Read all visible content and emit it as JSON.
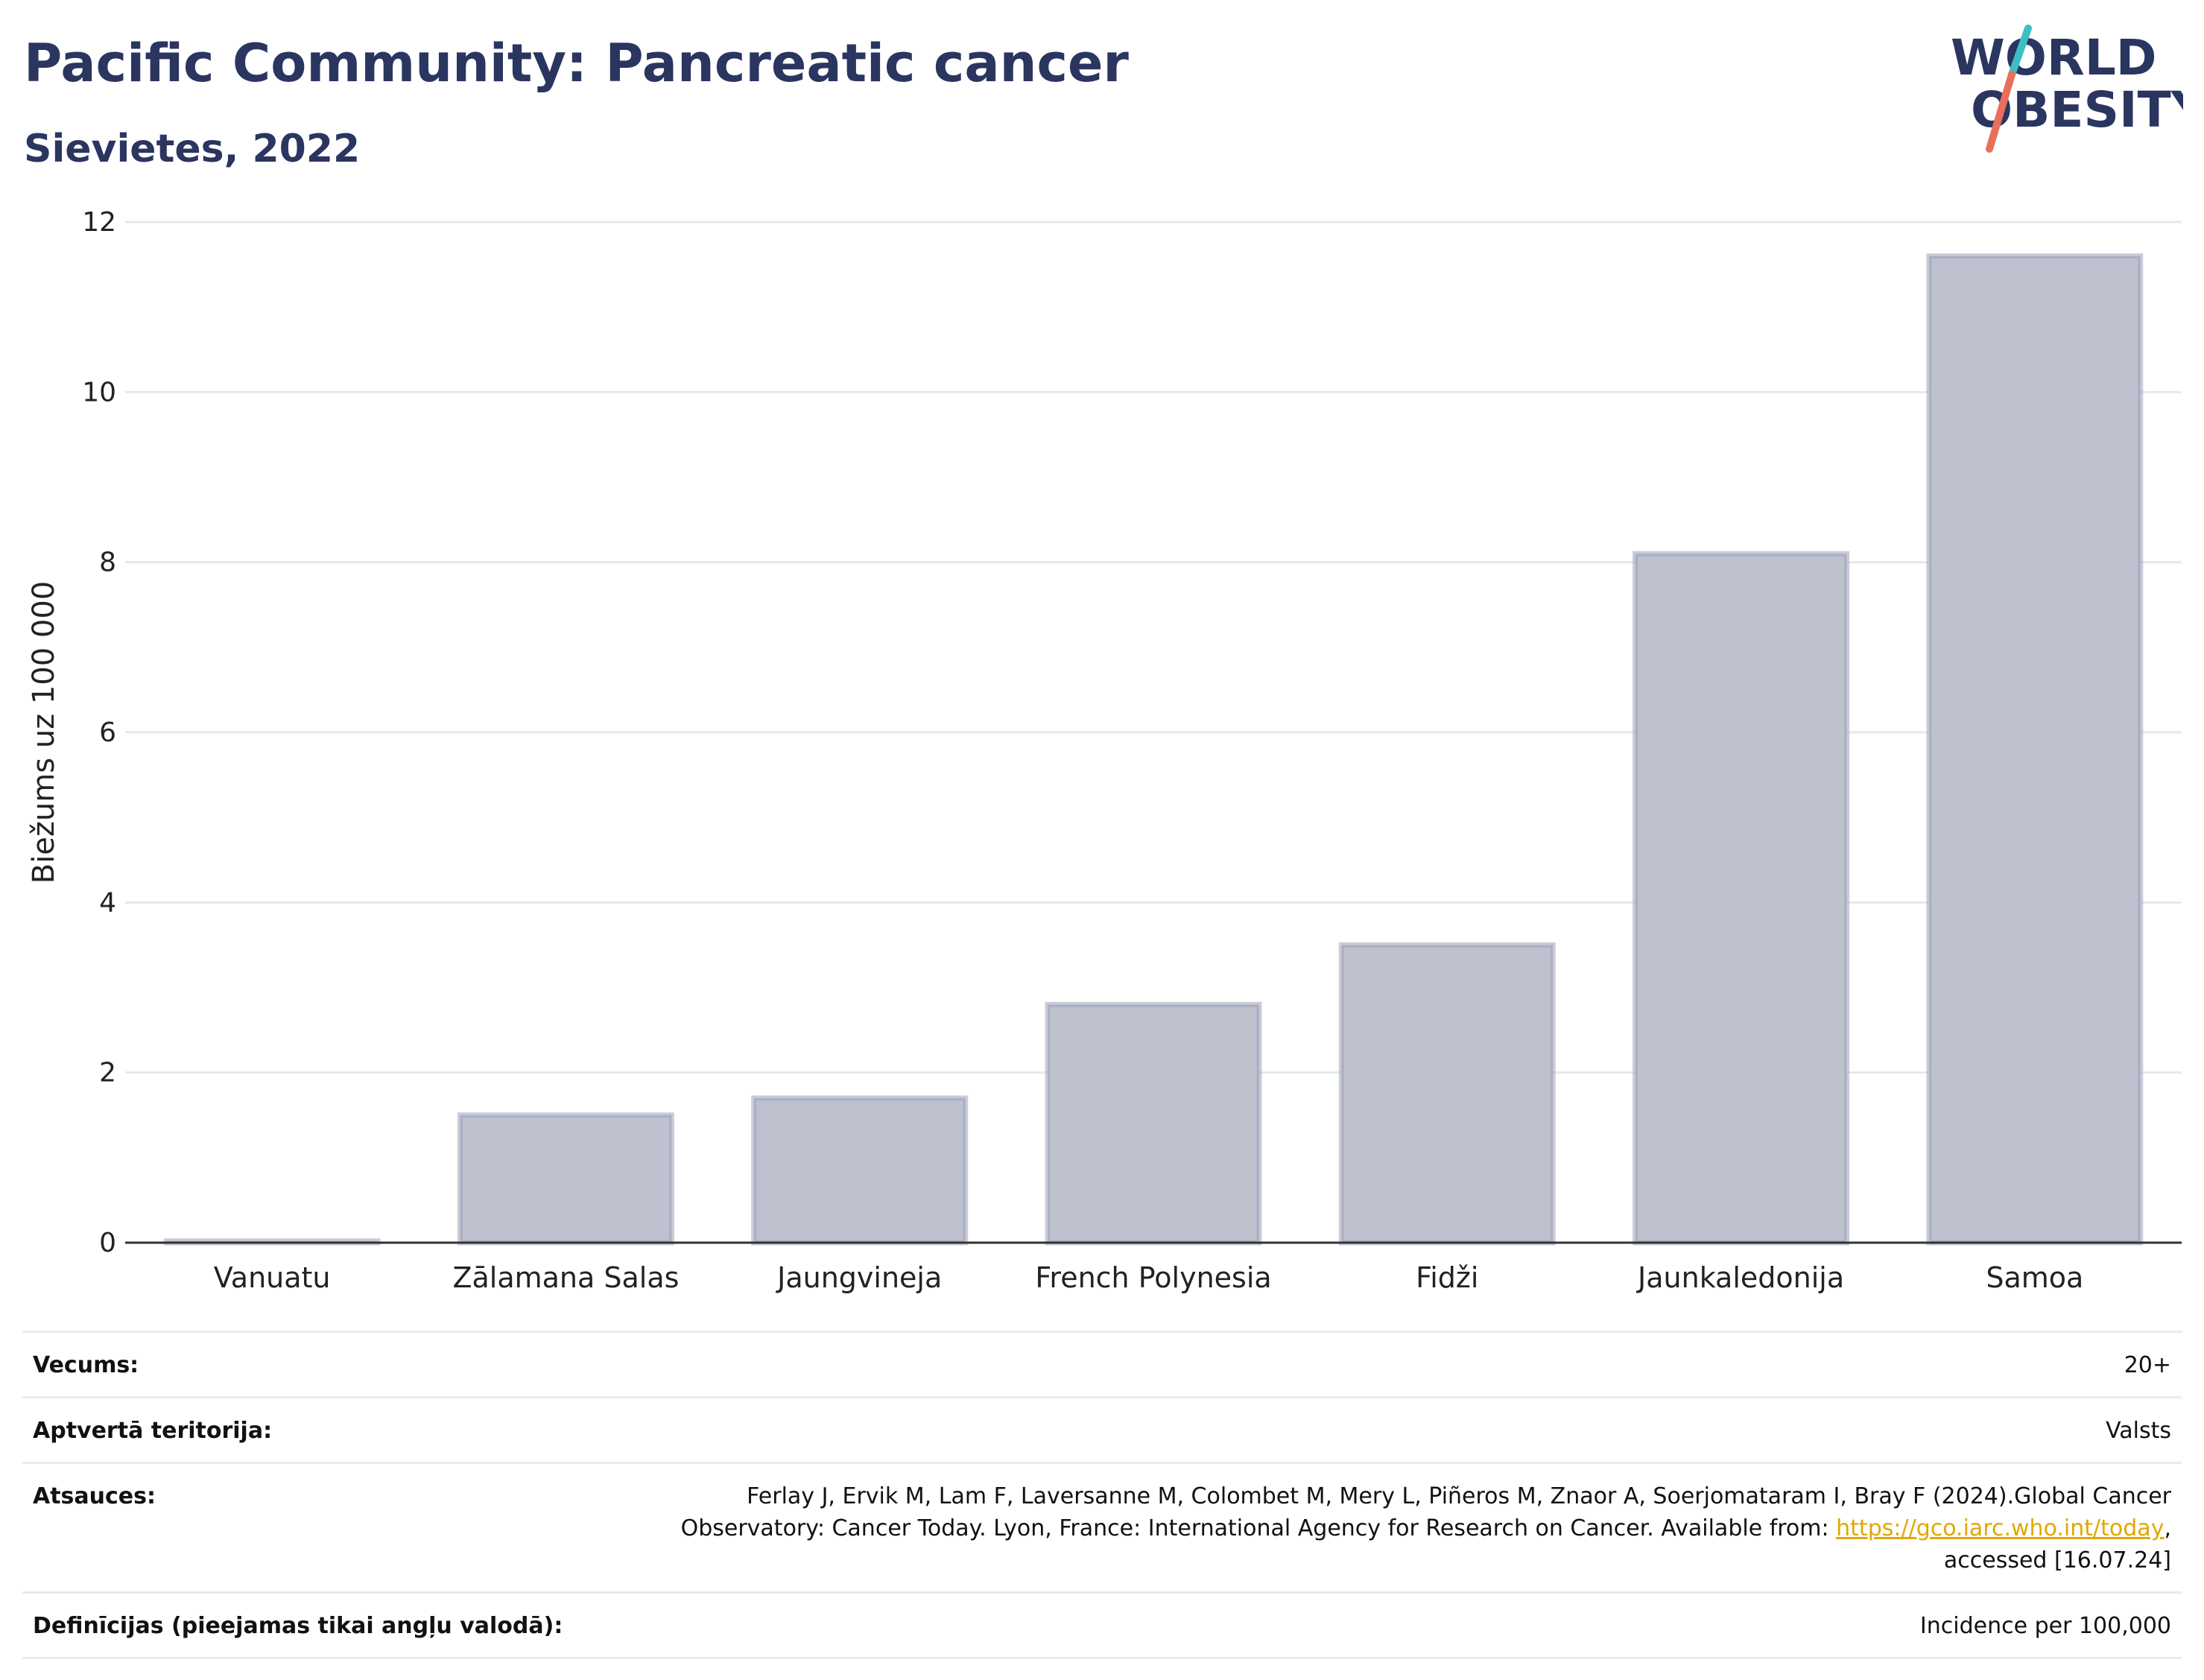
{
  "header": {
    "title": "Pacific Community: Pancreatic cancer",
    "subtitle": "Sievietes, 2022"
  },
  "logo": {
    "line1": "WORLD",
    "line2": "OBESITY",
    "accent_teal": "#3cbfc4",
    "accent_coral": "#e8705a",
    "text_color": "#2a3560"
  },
  "chart_data": {
    "type": "bar",
    "categories": [
      "Vanuatu",
      "Zālamana Salas",
      "Jaungvineja",
      "French Polynesia",
      "Fidži",
      "Jaunkaledonija",
      "Samoa"
    ],
    "values": [
      0.02,
      1.5,
      1.7,
      2.8,
      3.5,
      8.1,
      11.6
    ],
    "ylabel": "Biežums uz 100 000",
    "xlabel": "",
    "ylim": [
      0,
      12
    ],
    "yticks": [
      0,
      2,
      4,
      6,
      8,
      10,
      12
    ],
    "grid": true,
    "bar_fill": "#bec2cf",
    "bar_stroke": "#9da2b8"
  },
  "info": {
    "age_label": "Vecums:",
    "age_value": "20+",
    "coverage_label": "Aptvertā teritorija:",
    "coverage_value": "Valsts",
    "refs_label": "Atsauces:",
    "refs_line1": "Ferlay J, Ervik M, Lam F, Laversanne M, Colombet M, Mery L, Piñeros M, Znaor A, Soerjomataram I, Bray F (2024).Global Cancer",
    "refs_line2": "Observatory: Cancer Today. Lyon, France: International Agency for Research on Cancer. Available from:",
    "refs_link": "https://gco.iarc.who.int/today",
    "refs_line3": "accessed [16.07.24]",
    "defs_label": "Definīcijas (pieejamas tikai angļu valodā):",
    "defs_value": "Incidence per 100,000"
  }
}
